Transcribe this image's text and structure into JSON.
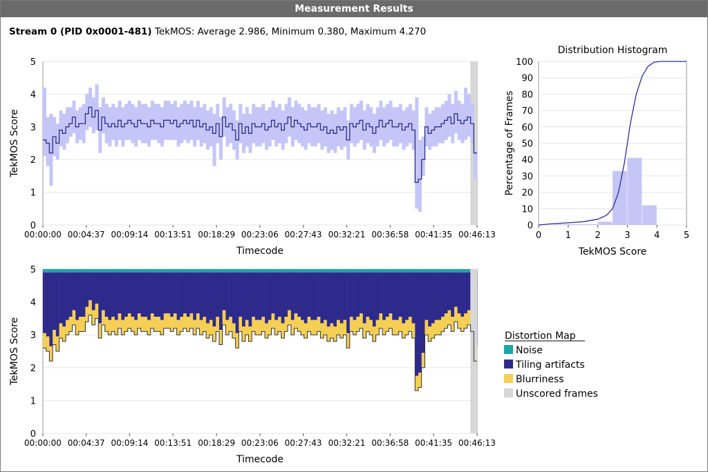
{
  "window": {
    "title": "Measurement Results"
  },
  "summary": {
    "stream": "Stream 0 (PID 0x0001-481)",
    "metric": "TekMOS:",
    "average": "Average 2.986,",
    "minimum": "Minimum 0.380,",
    "maximum": "Maximum 4.270"
  },
  "chart_data": [
    {
      "type": "line",
      "ylabel": "TekMOS Score",
      "xlabel": "Timecode",
      "ylim": [
        0,
        5
      ],
      "yticks": [
        "0",
        "1",
        "2",
        "3",
        "4",
        "5"
      ],
      "xticks": [
        "00:00:00",
        "00:04:37",
        "00:09:14",
        "00:13:51",
        "00:18:29",
        "00:23:06",
        "00:27:43",
        "00:32:21",
        "00:36:58",
        "00:41:35",
        "00:46:13"
      ],
      "grid": true,
      "series": [
        {
          "values": [
            2.6,
            2.5,
            2.2,
            2.7,
            2.5,
            2.9,
            2.8,
            3.0,
            3.1,
            3.3,
            3.0,
            3.1,
            3.1,
            3.4,
            3.6,
            3.3,
            3.5,
            2.9,
            3.3,
            3.1,
            3.0,
            3.1,
            3.0,
            3.2,
            3.0,
            3.1,
            3.2,
            3.1,
            3.0,
            3.2,
            3.1,
            3.1,
            3.0,
            3.2,
            3.1,
            3.1,
            3.0,
            3.2,
            3.2,
            3.1,
            3.2,
            3.0,
            3.1,
            3.2,
            3.1,
            3.2,
            3.0,
            3.2,
            3.0,
            3.1,
            2.9,
            3.0,
            2.8,
            3.1,
            2.7,
            3.3,
            3.0,
            3.1,
            2.9,
            2.6,
            3.1,
            2.8,
            3.0,
            2.8,
            3.1,
            3.0,
            3.0,
            3.1,
            2.9,
            3.0,
            3.2,
            3.0,
            3.1,
            2.9,
            3.1,
            3.3,
            3.0,
            3.2,
            3.1,
            3.0,
            2.9,
            3.1,
            3.0,
            3.0,
            3.1,
            2.9,
            3.0,
            2.8,
            2.9,
            2.8,
            3.0,
            2.9,
            3.0,
            2.6,
            3.1,
            3.0,
            3.1,
            3.2,
            2.9,
            3.1,
            3.0,
            2.8,
            3.0,
            3.2,
            3.0,
            3.1,
            3.2,
            3.0,
            3.0,
            3.1,
            2.9,
            3.0,
            3.1,
            2.9,
            1.3,
            1.4,
            2.0,
            3.0,
            2.8,
            2.9,
            3.0,
            3.0,
            3.1,
            3.2,
            3.3,
            3.1,
            3.4,
            3.2,
            3.1,
            3.2,
            3.3,
            3.1,
            2.2
          ],
          "low": [
            2.1,
            1.8,
            1.2,
            2.1,
            2.0,
            2.4,
            2.3,
            2.5,
            2.7,
            2.8,
            2.5,
            2.6,
            2.5,
            2.9,
            3.0,
            2.8,
            2.9,
            2.2,
            2.8,
            2.5,
            2.4,
            2.6,
            2.4,
            2.6,
            2.4,
            2.6,
            2.6,
            2.5,
            2.4,
            2.6,
            2.5,
            2.5,
            2.4,
            2.6,
            2.6,
            2.5,
            2.4,
            2.6,
            2.6,
            2.6,
            2.6,
            2.4,
            2.5,
            2.6,
            2.5,
            2.6,
            2.4,
            2.6,
            2.4,
            2.5,
            2.3,
            2.4,
            1.8,
            2.5,
            2.0,
            2.7,
            2.4,
            2.5,
            2.3,
            2.0,
            2.5,
            2.2,
            2.4,
            2.2,
            2.5,
            2.4,
            2.4,
            2.5,
            2.3,
            2.4,
            2.6,
            2.4,
            2.5,
            2.3,
            2.5,
            2.7,
            2.4,
            2.6,
            2.5,
            2.4,
            2.3,
            2.5,
            2.4,
            2.4,
            2.5,
            2.3,
            2.4,
            2.2,
            2.3,
            2.2,
            2.4,
            2.3,
            2.4,
            2.0,
            2.5,
            2.4,
            2.5,
            2.6,
            2.3,
            2.5,
            2.4,
            2.2,
            2.4,
            2.6,
            2.4,
            2.5,
            2.6,
            2.4,
            2.4,
            2.5,
            2.3,
            2.4,
            2.5,
            2.3,
            0.5,
            0.4,
            1.5,
            2.4,
            2.3,
            2.4,
            2.4,
            2.5,
            2.5,
            2.6,
            2.7,
            2.5,
            2.8,
            2.6,
            2.5,
            2.6,
            2.7,
            2.5,
            1.4
          ],
          "high": [
            4.2,
            3.3,
            3.4,
            3.3,
            3.1,
            3.5,
            3.4,
            3.6,
            3.6,
            3.8,
            3.5,
            3.6,
            3.7,
            4.0,
            4.2,
            3.9,
            4.3,
            3.6,
            3.9,
            3.7,
            3.6,
            3.7,
            3.6,
            3.8,
            3.6,
            3.7,
            3.8,
            3.7,
            3.6,
            3.8,
            3.7,
            3.7,
            3.6,
            3.8,
            3.7,
            3.7,
            3.6,
            3.8,
            3.8,
            3.7,
            3.8,
            3.6,
            3.7,
            3.8,
            3.7,
            3.8,
            3.6,
            3.8,
            3.6,
            3.7,
            3.5,
            3.6,
            3.4,
            3.7,
            3.3,
            3.9,
            3.6,
            3.7,
            3.5,
            3.2,
            3.7,
            3.4,
            3.6,
            3.4,
            3.7,
            3.6,
            3.6,
            3.7,
            3.5,
            3.6,
            3.8,
            3.6,
            3.7,
            3.5,
            3.7,
            3.9,
            3.6,
            3.8,
            3.7,
            3.6,
            3.5,
            3.7,
            3.6,
            3.6,
            3.7,
            3.5,
            3.6,
            3.4,
            3.5,
            3.4,
            3.6,
            3.5,
            3.6,
            3.2,
            3.7,
            3.6,
            3.7,
            3.8,
            3.5,
            3.7,
            3.6,
            3.4,
            3.6,
            3.8,
            3.6,
            3.7,
            3.8,
            3.6,
            3.6,
            3.7,
            3.5,
            3.6,
            3.7,
            3.5,
            3.9,
            2.6,
            2.7,
            3.6,
            3.4,
            3.5,
            3.6,
            3.6,
            3.7,
            3.8,
            4.0,
            3.7,
            4.1,
            3.8,
            3.7,
            4.2,
            4.0,
            3.7,
            2.3
          ]
        }
      ],
      "unscored_region": [
        "00:45:30",
        "00:46:13"
      ]
    },
    {
      "type": "histogram",
      "title": "Distribution Histogram",
      "xlabel": "TekMOS Score",
      "ylabel": "Percentage of Frames",
      "xlim": [
        0,
        5
      ],
      "ylim": [
        0,
        100
      ],
      "xticks": [
        "0",
        "1",
        "2",
        "3",
        "4",
        "5"
      ],
      "yticks": [
        "0",
        "10",
        "20",
        "30",
        "40",
        "50",
        "60",
        "70",
        "80",
        "90",
        "100"
      ],
      "grid": true,
      "bins": [
        {
          "x0": 0.5,
          "x1": 1.0,
          "value": 0.5
        },
        {
          "x0": 1.0,
          "x1": 1.5,
          "value": 0.5
        },
        {
          "x0": 1.5,
          "x1": 2.0,
          "value": 0.5
        },
        {
          "x0": 2.0,
          "x1": 2.5,
          "value": 2
        },
        {
          "x0": 2.5,
          "x1": 3.0,
          "value": 33
        },
        {
          "x0": 3.0,
          "x1": 3.5,
          "value": 41
        },
        {
          "x0": 3.5,
          "x1": 4.0,
          "value": 12
        }
      ],
      "cumulative": [
        [
          0,
          0
        ],
        [
          0.5,
          0.8
        ],
        [
          1.0,
          1.3
        ],
        [
          1.5,
          2.0
        ],
        [
          2.0,
          3.5
        ],
        [
          2.3,
          6
        ],
        [
          2.5,
          10
        ],
        [
          2.7,
          20
        ],
        [
          2.9,
          38
        ],
        [
          3.0,
          50
        ],
        [
          3.1,
          62
        ],
        [
          3.3,
          80
        ],
        [
          3.5,
          91
        ],
        [
          3.7,
          97
        ],
        [
          3.9,
          99.5
        ],
        [
          4.1,
          100
        ],
        [
          5,
          100
        ]
      ]
    },
    {
      "type": "area",
      "ylabel": "TekMOS Score",
      "xlabel": "Timecode",
      "ylim": [
        0,
        5
      ],
      "yticks": [
        "0",
        "1",
        "2",
        "3",
        "4",
        "5"
      ],
      "xticks": [
        "00:00:00",
        "00:04:37",
        "00:09:14",
        "00:13:51",
        "00:18:29",
        "00:23:06",
        "00:27:43",
        "00:32:21",
        "00:36:58",
        "00:41:35",
        "00:46:13"
      ],
      "grid": true,
      "legend": {
        "title": "Distortion Map",
        "position": "right",
        "entries": [
          {
            "label": "Noise",
            "color": "#1aa6a6"
          },
          {
            "label": "Tiling artifacts",
            "color": "#2e2a8c"
          },
          {
            "label": "Blurriness",
            "color": "#f5cf55"
          },
          {
            "label": "Unscored frames",
            "color": "#d7d7d7"
          }
        ]
      },
      "series": [
        {
          "name": "Noise",
          "top": 5.0,
          "bottom": 4.9
        },
        {
          "name": "Tiling artifacts",
          "top": 4.9
        },
        {
          "name": "Blurriness",
          "offset": 0.45
        },
        {
          "name": "Unscored frames"
        }
      ]
    }
  ],
  "colors": {
    "title_bar": "#6b6b6b",
    "range_fill": "#c5c6f7",
    "mean_line": "#2b2b8a",
    "noise": "#1aa6a6",
    "tiling": "#2e2a8c",
    "blur": "#f5cf55",
    "unscored": "#d7d7d7",
    "cumulative": "#2b2b9e"
  }
}
